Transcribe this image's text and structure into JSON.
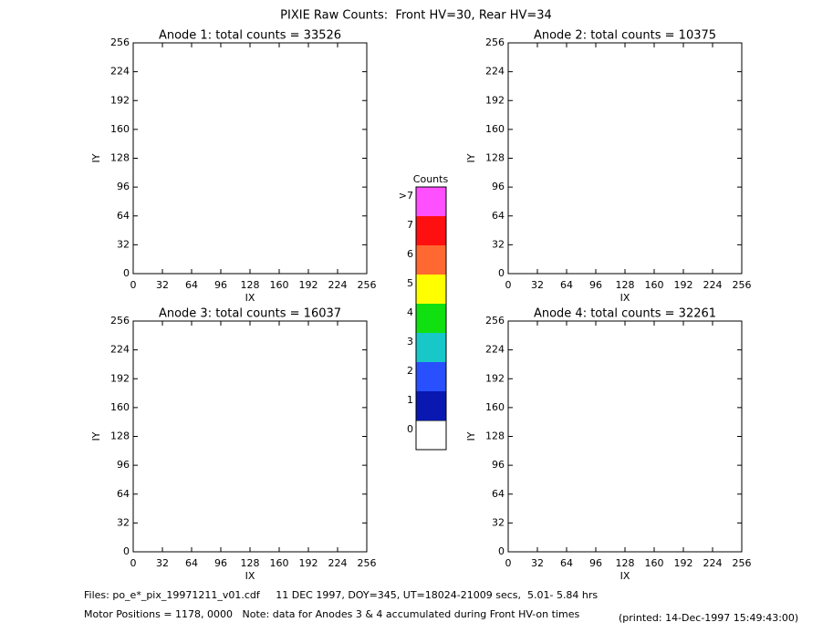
{
  "title": "PIXIE Raw Counts:  Front HV=30, Rear HV=34",
  "chart_data": [
    {
      "type": "heatmap",
      "title": "Anode 1: total counts = 33526",
      "xlabel": "IX",
      "ylabel": "IY",
      "xlim": [
        0,
        256
      ],
      "ylim": [
        0,
        256
      ],
      "xticks": [
        0,
        32,
        64,
        96,
        128,
        160,
        192,
        224,
        256
      ],
      "yticks": [
        0,
        32,
        64,
        96,
        128,
        160,
        192,
        224,
        256
      ]
    },
    {
      "type": "heatmap",
      "title": "Anode 2: total counts = 10375",
      "xlabel": "IX",
      "ylabel": "IY",
      "xlim": [
        0,
        256
      ],
      "ylim": [
        0,
        256
      ],
      "xticks": [
        0,
        32,
        64,
        96,
        128,
        160,
        192,
        224,
        256
      ],
      "yticks": [
        0,
        32,
        64,
        96,
        128,
        160,
        192,
        224,
        256
      ]
    },
    {
      "type": "heatmap",
      "title": "Anode 3: total counts = 16037",
      "xlabel": "IX",
      "ylabel": "IY",
      "xlim": [
        0,
        256
      ],
      "ylim": [
        0,
        256
      ],
      "xticks": [
        0,
        32,
        64,
        96,
        128,
        160,
        192,
        224,
        256
      ],
      "yticks": [
        0,
        32,
        64,
        96,
        128,
        160,
        192,
        224,
        256
      ]
    },
    {
      "type": "heatmap",
      "title": "Anode 4: total counts = 32261",
      "xlabel": "IX",
      "ylabel": "IY",
      "xlim": [
        0,
        256
      ],
      "ylim": [
        0,
        256
      ],
      "xticks": [
        0,
        32,
        64,
        96,
        128,
        160,
        192,
        224,
        256
      ],
      "yticks": [
        0,
        32,
        64,
        96,
        128,
        160,
        192,
        224,
        256
      ]
    }
  ],
  "colorbar": {
    "title": "Counts",
    "levels": [
      {
        "label": "0",
        "color": "#ffffff"
      },
      {
        "label": "1",
        "color": "#0818b0"
      },
      {
        "label": "2",
        "color": "#2850ff"
      },
      {
        "label": "3",
        "color": "#18c8c8"
      },
      {
        "label": "4",
        "color": "#10e010"
      },
      {
        "label": "5",
        "color": "#ffff00"
      },
      {
        "label": "6",
        "color": "#ff6830"
      },
      {
        "label": "7",
        "color": "#ff1010"
      },
      {
        "label": ">7",
        "color": "#ff50ff"
      }
    ]
  },
  "footer": {
    "files": "Files: po_e*_pix_19971211_v01.cdf     11 DEC 1997, DOY=345, UT=18024-21009 secs,  5.01- 5.84 hrs",
    "motor": "Motor Positions = 1178, 0000   Note: data for Anodes 3 & 4 accumulated during Front HV-on times",
    "printed": "(printed: 14-Dec-1997 15:49:43:00)"
  }
}
